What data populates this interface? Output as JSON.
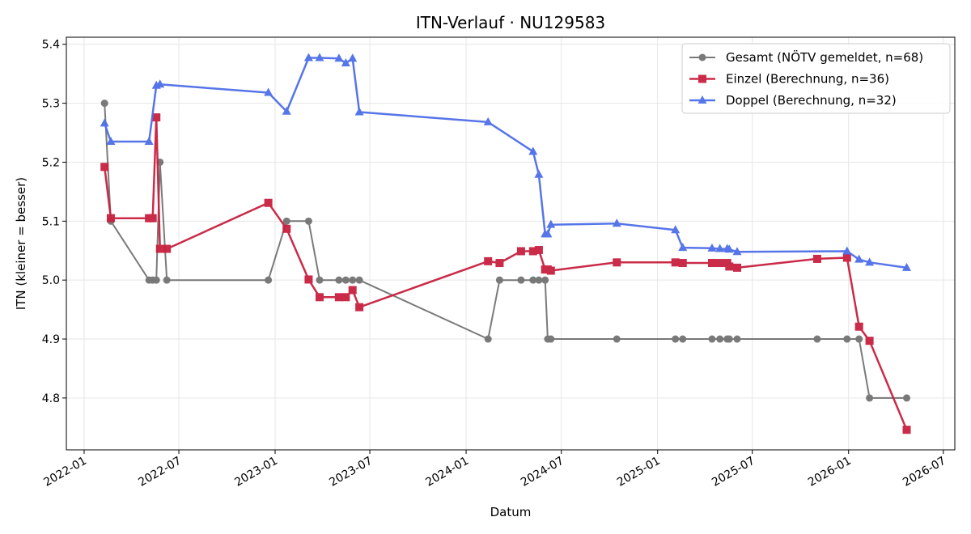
{
  "chart_data": {
    "type": "line",
    "title": "ITN-Verlauf · NU129583",
    "xlabel": "Datum",
    "ylabel": "ITN  (kleiner = besser)",
    "xlim": [
      "2021-11-28",
      "2026-07-23"
    ],
    "ylim": [
      4.712,
      5.412
    ],
    "xticks": [
      "2022-01",
      "2022-07",
      "2023-01",
      "2023-07",
      "2024-01",
      "2024-07",
      "2025-01",
      "2025-07",
      "2026-01",
      "2026-07"
    ],
    "yticks": [
      "4.8",
      "4.9",
      "5.0",
      "5.1",
      "5.2",
      "5.3",
      "5.4"
    ],
    "grid": true,
    "legend_position": "top-right",
    "series": [
      {
        "name": "Gesamt (NÖTV gemeldet, n=68)",
        "color": "#555555",
        "marker": "circle",
        "points": [
          [
            "2022-02-09",
            5.3
          ],
          [
            "2022-02-21",
            5.1
          ],
          [
            "2022-05-05",
            5.0
          ],
          [
            "2022-05-12",
            5.0
          ],
          [
            "2022-05-19",
            5.0
          ],
          [
            "2022-05-26",
            5.2
          ],
          [
            "2022-06-08",
            5.0
          ],
          [
            "2022-12-19",
            5.0
          ],
          [
            "2023-01-23",
            5.1
          ],
          [
            "2023-03-06",
            5.1
          ],
          [
            "2023-03-27",
            5.0
          ],
          [
            "2023-05-03",
            5.0
          ],
          [
            "2023-05-16",
            5.0
          ],
          [
            "2023-05-29",
            5.0
          ],
          [
            "2023-06-11",
            5.0
          ],
          [
            "2024-02-12",
            4.9
          ],
          [
            "2024-03-05",
            5.0
          ],
          [
            "2024-04-15",
            5.0
          ],
          [
            "2024-05-08",
            5.0
          ],
          [
            "2024-05-19",
            5.0
          ],
          [
            "2024-05-31",
            5.0
          ],
          [
            "2024-06-05",
            4.9
          ],
          [
            "2024-06-11",
            4.9
          ],
          [
            "2024-10-15",
            4.9
          ],
          [
            "2025-02-04",
            4.9
          ],
          [
            "2025-02-18",
            4.9
          ],
          [
            "2025-04-15",
            4.9
          ],
          [
            "2025-04-30",
            4.9
          ],
          [
            "2025-05-14",
            4.9
          ],
          [
            "2025-05-18",
            4.9
          ],
          [
            "2025-06-02",
            4.9
          ],
          [
            "2025-11-02",
            4.9
          ],
          [
            "2025-12-29",
            4.9
          ],
          [
            "2026-01-21",
            4.9
          ],
          [
            "2026-02-10",
            4.8
          ],
          [
            "2026-04-22",
            4.8
          ]
        ]
      },
      {
        "name": "Einzel (Berechnung, n=36)",
        "color": "#c8203f",
        "marker": "square",
        "points": [
          [
            "2022-02-09",
            5.192
          ],
          [
            "2022-02-21",
            5.105
          ],
          [
            "2022-05-05",
            5.105
          ],
          [
            "2022-05-12",
            5.105
          ],
          [
            "2022-05-19",
            5.276
          ],
          [
            "2022-05-26",
            5.053
          ],
          [
            "2022-06-08",
            5.053
          ],
          [
            "2022-12-19",
            5.131
          ],
          [
            "2023-01-23",
            5.087
          ],
          [
            "2023-03-06",
            5.001
          ],
          [
            "2023-03-27",
            4.971
          ],
          [
            "2023-05-03",
            4.971
          ],
          [
            "2023-05-16",
            4.971
          ],
          [
            "2023-05-29",
            4.983
          ],
          [
            "2023-06-11",
            4.954
          ],
          [
            "2024-02-12",
            5.032
          ],
          [
            "2024-03-05",
            5.029
          ],
          [
            "2024-04-15",
            5.049
          ],
          [
            "2024-05-08",
            5.049
          ],
          [
            "2024-05-19",
            5.051
          ],
          [
            "2024-05-31",
            5.018
          ],
          [
            "2024-06-05",
            5.018
          ],
          [
            "2024-06-11",
            5.016
          ],
          [
            "2024-10-15",
            5.03
          ],
          [
            "2025-02-04",
            5.03
          ],
          [
            "2025-02-18",
            5.029
          ],
          [
            "2025-04-15",
            5.029
          ],
          [
            "2025-04-30",
            5.029
          ],
          [
            "2025-05-14",
            5.029
          ],
          [
            "2025-05-18",
            5.023
          ],
          [
            "2025-06-02",
            5.021
          ],
          [
            "2025-11-02",
            5.036
          ],
          [
            "2025-12-29",
            5.038
          ],
          [
            "2026-01-21",
            4.921
          ],
          [
            "2026-02-10",
            4.897
          ],
          [
            "2026-04-22",
            4.746
          ]
        ]
      },
      {
        "name": "Doppel (Berechnung, n=32)",
        "color": "#4e6ee8",
        "marker": "triangle",
        "points": [
          [
            "2022-02-09",
            5.266
          ],
          [
            "2022-02-21",
            5.235
          ],
          [
            "2022-05-05",
            5.235
          ],
          [
            "2022-05-19",
            5.33
          ],
          [
            "2022-05-26",
            5.332
          ],
          [
            "2022-12-19",
            5.318
          ],
          [
            "2023-01-23",
            5.286
          ],
          [
            "2023-03-06",
            5.377
          ],
          [
            "2023-03-27",
            5.377
          ],
          [
            "2023-05-03",
            5.376
          ],
          [
            "2023-05-16",
            5.368
          ],
          [
            "2023-05-29",
            5.376
          ],
          [
            "2023-06-11",
            5.285
          ],
          [
            "2024-02-12",
            5.268
          ],
          [
            "2024-05-08",
            5.218
          ],
          [
            "2024-05-19",
            5.179
          ],
          [
            "2024-05-31",
            5.078
          ],
          [
            "2024-06-05",
            5.078
          ],
          [
            "2024-06-11",
            5.094
          ],
          [
            "2024-10-15",
            5.096
          ],
          [
            "2025-02-04",
            5.085
          ],
          [
            "2025-02-18",
            5.055
          ],
          [
            "2025-04-15",
            5.054
          ],
          [
            "2025-04-30",
            5.053
          ],
          [
            "2025-05-14",
            5.053
          ],
          [
            "2025-05-18",
            5.052
          ],
          [
            "2025-06-02",
            5.048
          ],
          [
            "2025-12-29",
            5.049
          ],
          [
            "2026-01-21",
            5.035
          ],
          [
            "2026-02-10",
            5.03
          ],
          [
            "2026-04-22",
            5.021
          ]
        ]
      }
    ]
  }
}
